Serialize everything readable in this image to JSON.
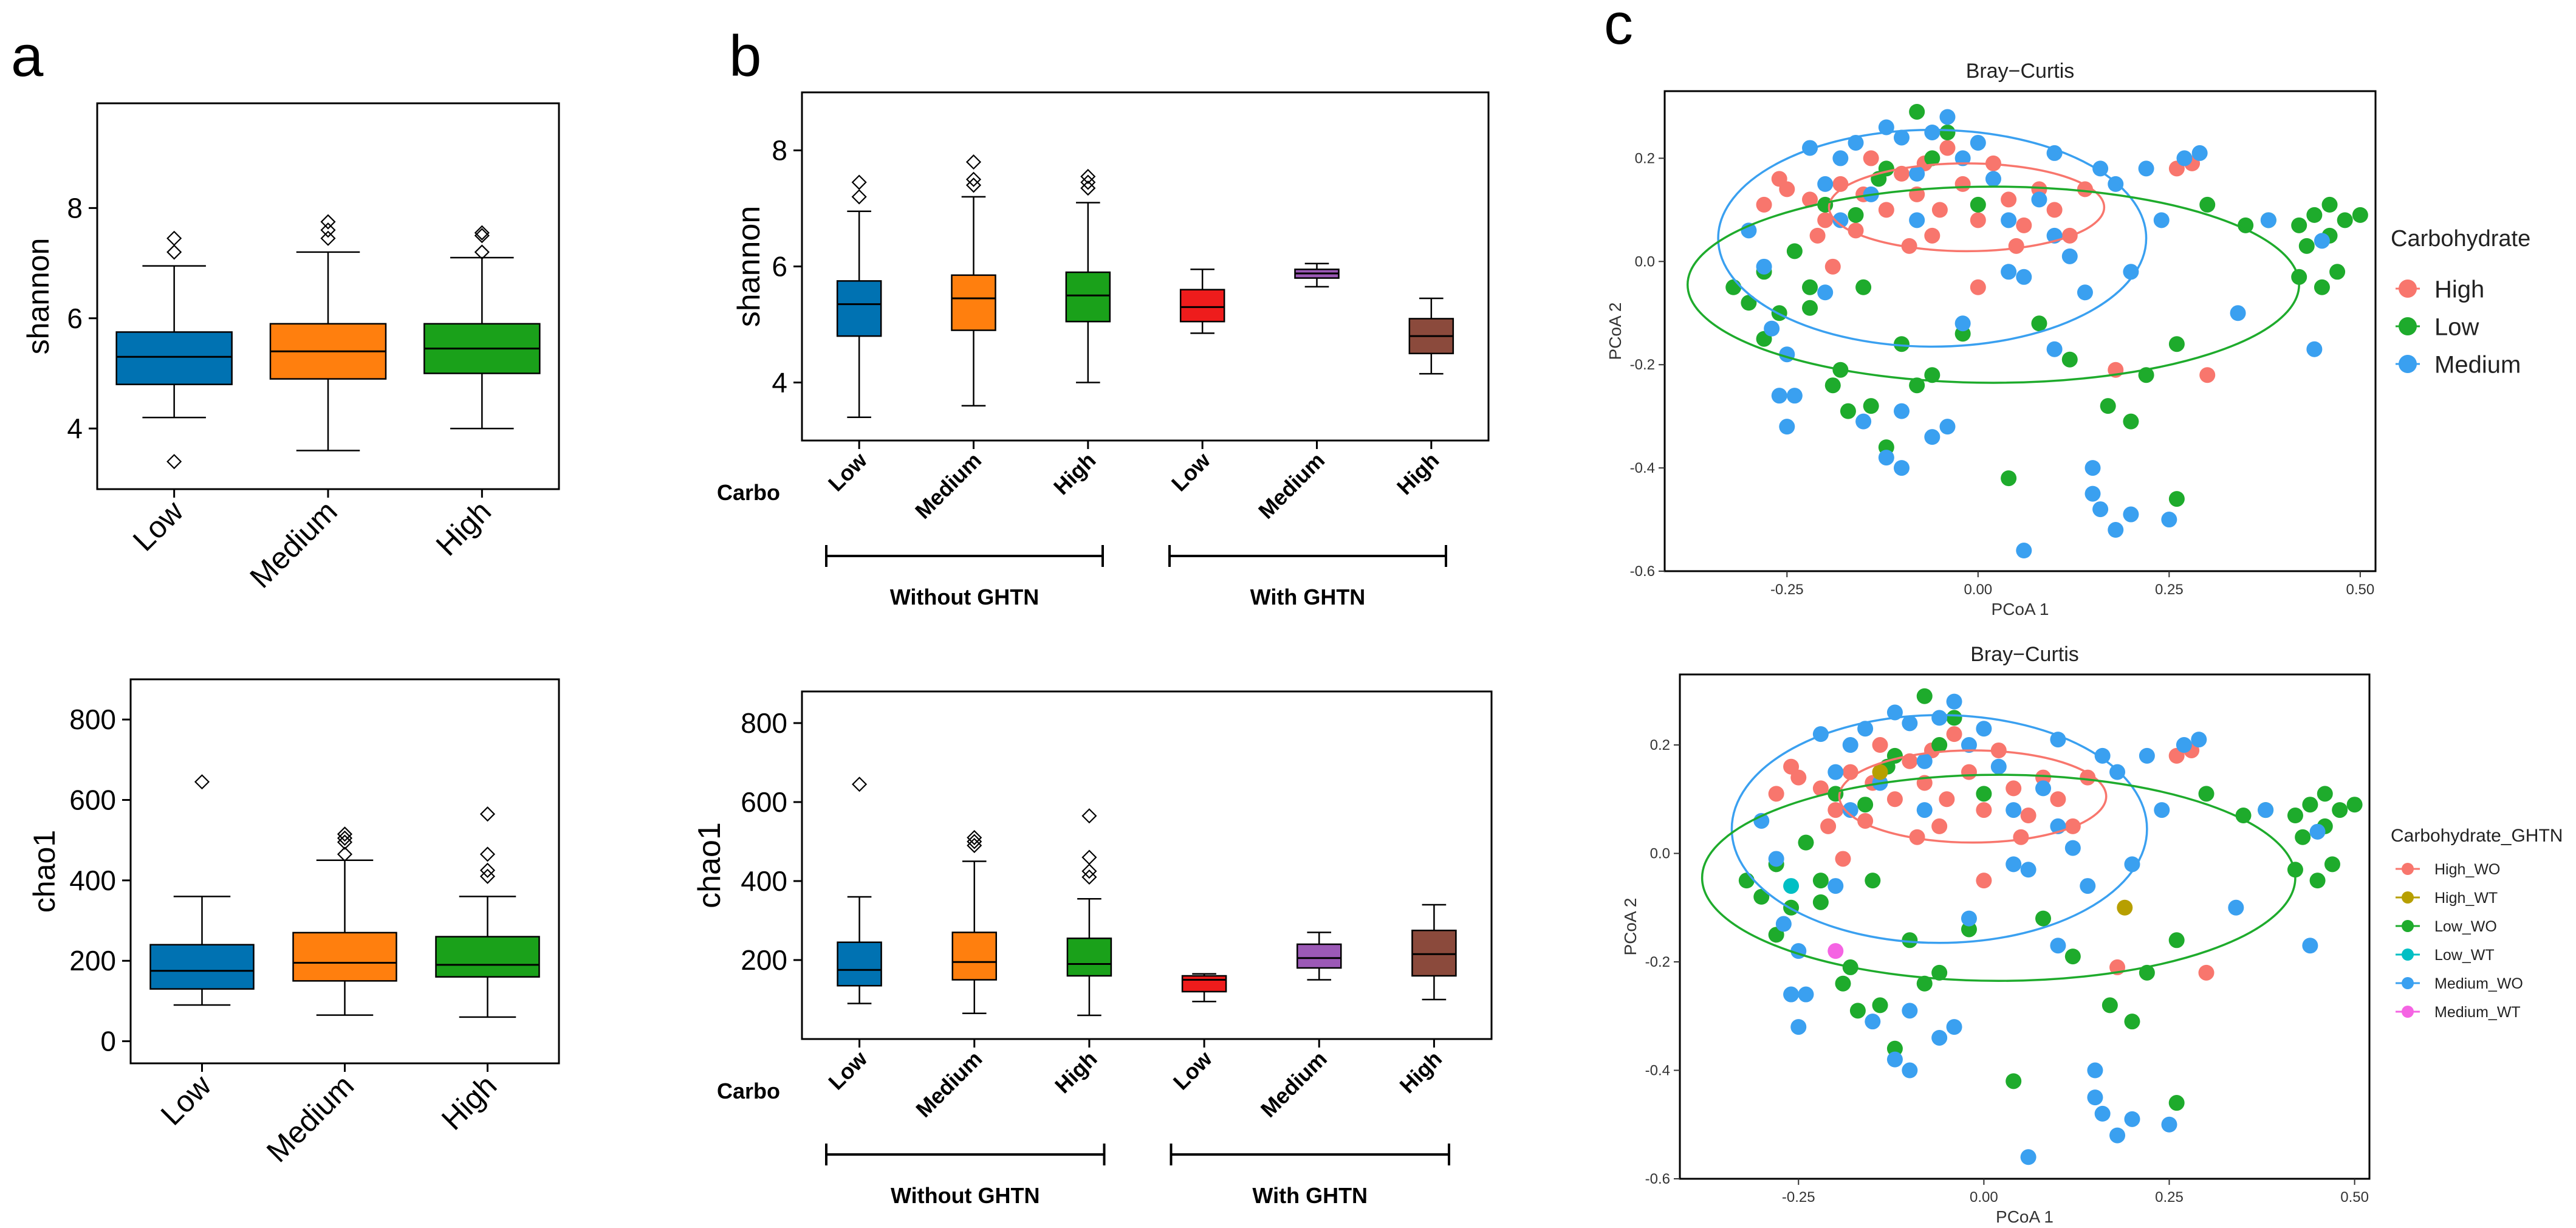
{
  "colors": {
    "low": "#0072b2",
    "medium": "#ff7f0e",
    "high": "#1aa11a",
    "with_low": "#ee1c1c",
    "with_medium": "#9b59b6",
    "with_high": "#8b4a3c",
    "pcoa_high": "#f8766d",
    "pcoa_low": "#1eab2c",
    "pcoa_medium": "#3aa0f0",
    "pcoa_high_wt": "#b79f00",
    "pcoa_low_wt": "#00bfc4",
    "pcoa_medium_wt": "#f564e3"
  },
  "panels": {
    "a": "a",
    "b": "b",
    "c": "c"
  },
  "chart_data": [
    {
      "id": "a_shannon",
      "type": "boxplot",
      "ylabel": "shannon",
      "ylim": [
        2.9,
        9.9
      ],
      "yticks": [
        4,
        6,
        8
      ],
      "categories": [
        "Low",
        "Medium",
        "High"
      ],
      "boxes": [
        {
          "min": 4.2,
          "q1": 4.8,
          "median": 5.3,
          "q3": 5.75,
          "max": 6.95,
          "outliers": [
            7.45,
            7.2,
            3.4
          ]
        },
        {
          "min": 3.6,
          "q1": 4.9,
          "median": 5.4,
          "q3": 5.9,
          "max": 7.2,
          "outliers": [
            7.75,
            7.6,
            7.45
          ]
        },
        {
          "min": 4.0,
          "q1": 5.0,
          "median": 5.45,
          "q3": 5.9,
          "max": 7.1,
          "outliers": [
            7.55,
            7.5,
            7.2
          ]
        }
      ]
    },
    {
      "id": "a_chao1",
      "type": "boxplot",
      "ylabel": "chao1",
      "ylim": [
        -55,
        900
      ],
      "yticks": [
        0,
        200,
        400,
        600,
        800
      ],
      "categories": [
        "Low",
        "Medium",
        "High"
      ],
      "boxes": [
        {
          "min": 90,
          "q1": 130,
          "median": 175,
          "q3": 240,
          "max": 360,
          "outliers": [
            645
          ]
        },
        {
          "min": 65,
          "q1": 150,
          "median": 195,
          "q3": 270,
          "max": 450,
          "outliers": [
            515,
            505,
            495,
            465
          ]
        },
        {
          "min": 60,
          "q1": 160,
          "median": 190,
          "q3": 260,
          "max": 360,
          "outliers": [
            565,
            465,
            425,
            410
          ]
        }
      ]
    },
    {
      "id": "b_shannon",
      "type": "boxplot",
      "ylabel": "shannon",
      "ylim": [
        3.0,
        9.0
      ],
      "yticks": [
        4,
        6,
        8
      ],
      "categories": [
        "Low",
        "Medium",
        "High",
        "Low",
        "Medium",
        "High"
      ],
      "group_axis_label": "Carbo",
      "groups": [
        "Without GHTN",
        "With GHTN"
      ],
      "boxes": [
        {
          "min": 3.4,
          "q1": 4.8,
          "median": 5.35,
          "q3": 5.75,
          "max": 6.95,
          "outliers": [
            7.45,
            7.2
          ]
        },
        {
          "min": 3.6,
          "q1": 4.9,
          "median": 5.45,
          "q3": 5.85,
          "max": 7.2,
          "outliers": [
            7.8,
            7.5,
            7.4
          ]
        },
        {
          "min": 4.0,
          "q1": 5.05,
          "median": 5.5,
          "q3": 5.9,
          "max": 7.1,
          "outliers": [
            7.55,
            7.45,
            7.35
          ]
        },
        {
          "min": 4.85,
          "q1": 5.05,
          "median": 5.3,
          "q3": 5.6,
          "max": 5.95,
          "outliers": []
        },
        {
          "min": 5.65,
          "q1": 5.8,
          "median": 5.88,
          "q3": 5.95,
          "max": 6.05,
          "outliers": []
        },
        {
          "min": 4.15,
          "q1": 4.5,
          "median": 4.8,
          "q3": 5.1,
          "max": 5.45,
          "outliers": []
        }
      ]
    },
    {
      "id": "b_chao1",
      "type": "boxplot",
      "ylabel": "chao1",
      "ylim": [
        0,
        880
      ],
      "yticks": [
        200,
        400,
        600,
        800
      ],
      "categories": [
        "Low",
        "Medium",
        "High",
        "Low",
        "Medium",
        "High"
      ],
      "group_axis_label": "Carbo",
      "groups": [
        "Without GHTN",
        "With GHTN"
      ],
      "boxes": [
        {
          "min": 90,
          "q1": 135,
          "median": 175,
          "q3": 245,
          "max": 360,
          "outliers": [
            645
          ]
        },
        {
          "min": 65,
          "q1": 150,
          "median": 195,
          "q3": 270,
          "max": 450,
          "outliers": [
            510,
            500,
            490
          ]
        },
        {
          "min": 60,
          "q1": 160,
          "median": 190,
          "q3": 255,
          "max": 355,
          "outliers": [
            565,
            460,
            425,
            410
          ]
        },
        {
          "min": 95,
          "q1": 120,
          "median": 150,
          "q3": 160,
          "max": 165,
          "outliers": []
        },
        {
          "min": 150,
          "q1": 180,
          "median": 205,
          "q3": 240,
          "max": 270,
          "outliers": []
        },
        {
          "min": 100,
          "q1": 160,
          "median": 215,
          "q3": 275,
          "max": 340,
          "outliers": []
        }
      ]
    },
    {
      "id": "c_top",
      "type": "scatter",
      "title": "Bray−Curtis",
      "xlabel": "PCoA 1",
      "ylabel": "PCoA 2",
      "xlim": [
        -0.41,
        0.52
      ],
      "ylim": [
        -0.6,
        0.33
      ],
      "xticks": [
        -0.25,
        0.0,
        0.25,
        0.5
      ],
      "xtick_labels": [
        "-0.25",
        "0.00",
        "0.25",
        "0.50"
      ],
      "yticks": [
        0.2,
        0.0,
        -0.2,
        -0.4,
        -0.6
      ],
      "ytick_labels": [
        "0.2",
        "0.0",
        "-0.2",
        "-0.4",
        "-0.6"
      ],
      "legend_title": "Carbohydrate",
      "legend": [
        "High",
        "Low",
        "Medium"
      ],
      "ellipses": [
        {
          "group": "High",
          "cx": -0.015,
          "cy": 0.105,
          "rx": 0.18,
          "ry": 0.085
        },
        {
          "group": "Medium",
          "cx": -0.06,
          "cy": 0.045,
          "rx": 0.28,
          "ry": 0.21
        },
        {
          "group": "Low",
          "cx": 0.02,
          "cy": -0.045,
          "rx": 0.4,
          "ry": 0.19
        }
      ],
      "series": [
        {
          "name": "High",
          "points": [
            [
              -0.28,
              0.11
            ],
            [
              -0.25,
              0.14
            ],
            [
              -0.22,
              0.12
            ],
            [
              -0.2,
              0.08
            ],
            [
              -0.18,
              0.15
            ],
            [
              -0.16,
              0.06
            ],
            [
              -0.14,
              0.2
            ],
            [
              -0.12,
              0.1
            ],
            [
              -0.1,
              0.17
            ],
            [
              -0.08,
              0.13
            ],
            [
              -0.06,
              0.05
            ],
            [
              -0.04,
              0.22
            ],
            [
              -0.02,
              0.15
            ],
            [
              0.0,
              0.08
            ],
            [
              0.02,
              0.19
            ],
            [
              0.04,
              0.12
            ],
            [
              0.06,
              0.07
            ],
            [
              0.08,
              0.14
            ],
            [
              0.1,
              0.1
            ],
            [
              0.12,
              0.05
            ],
            [
              -0.15,
              0.13
            ],
            [
              -0.05,
              0.1
            ],
            [
              0.05,
              0.03
            ],
            [
              0.18,
              -0.21
            ],
            [
              0.3,
              -0.22
            ],
            [
              0.26,
              0.18
            ],
            [
              0.28,
              0.19
            ],
            [
              -0.21,
              0.05
            ],
            [
              -0.09,
              0.03
            ],
            [
              -0.19,
              -0.01
            ],
            [
              0.0,
              -0.05
            ],
            [
              -0.07,
              0.19
            ],
            [
              0.14,
              0.14
            ],
            [
              -0.26,
              0.16
            ]
          ]
        },
        {
          "name": "Low",
          "points": [
            [
              -0.32,
              -0.05
            ],
            [
              -0.3,
              -0.08
            ],
            [
              -0.28,
              -0.02
            ],
            [
              -0.26,
              -0.1
            ],
            [
              -0.24,
              0.02
            ],
            [
              -0.22,
              -0.05
            ],
            [
              -0.19,
              -0.24
            ],
            [
              -0.17,
              -0.29
            ],
            [
              -0.14,
              -0.28
            ],
            [
              -0.12,
              -0.36
            ],
            [
              -0.1,
              -0.16
            ],
            [
              -0.08,
              -0.24
            ],
            [
              -0.06,
              -0.22
            ],
            [
              -0.04,
              0.25
            ],
            [
              -0.02,
              -0.14
            ],
            [
              0.0,
              0.11
            ],
            [
              0.04,
              -0.42
            ],
            [
              0.08,
              -0.12
            ],
            [
              0.12,
              -0.19
            ],
            [
              0.17,
              -0.28
            ],
            [
              0.2,
              -0.31
            ],
            [
              0.22,
              -0.22
            ],
            [
              0.26,
              -0.46
            ],
            [
              0.3,
              0.11
            ],
            [
              0.35,
              0.07
            ],
            [
              0.38,
              0.08
            ],
            [
              0.42,
              0.07
            ],
            [
              0.44,
              0.09
            ],
            [
              0.46,
              0.05
            ],
            [
              0.48,
              0.08
            ],
            [
              0.47,
              -0.02
            ],
            [
              0.45,
              -0.05
            ],
            [
              0.43,
              0.03
            ],
            [
              0.5,
              0.09
            ],
            [
              0.46,
              0.11
            ],
            [
              -0.08,
              0.29
            ],
            [
              -0.06,
              0.2
            ],
            [
              -0.12,
              0.18
            ],
            [
              -0.2,
              0.11
            ],
            [
              -0.16,
              0.09
            ],
            [
              -0.18,
              -0.21
            ],
            [
              -0.15,
              -0.05
            ],
            [
              0.26,
              -0.16
            ],
            [
              -0.28,
              -0.15
            ],
            [
              -0.22,
              -0.09
            ],
            [
              0.42,
              -0.03
            ],
            [
              -0.13,
              0.16
            ]
          ]
        },
        {
          "name": "Medium",
          "points": [
            [
              -0.3,
              0.06
            ],
            [
              -0.28,
              -0.01
            ],
            [
              -0.27,
              -0.13
            ],
            [
              -0.25,
              -0.18
            ],
            [
              -0.24,
              -0.26
            ],
            [
              -0.22,
              0.22
            ],
            [
              -0.2,
              0.15
            ],
            [
              -0.18,
              0.2
            ],
            [
              -0.16,
              0.23
            ],
            [
              -0.14,
              0.13
            ],
            [
              -0.12,
              0.26
            ],
            [
              -0.1,
              0.24
            ],
            [
              -0.08,
              0.17
            ],
            [
              -0.06,
              0.25
            ],
            [
              -0.04,
              0.28
            ],
            [
              -0.02,
              0.2
            ],
            [
              0.0,
              0.23
            ],
            [
              0.02,
              0.16
            ],
            [
              0.04,
              0.08
            ],
            [
              0.06,
              -0.03
            ],
            [
              0.08,
              0.12
            ],
            [
              0.1,
              0.05
            ],
            [
              0.12,
              0.01
            ],
            [
              0.14,
              -0.06
            ],
            [
              0.16,
              0.18
            ],
            [
              0.18,
              0.15
            ],
            [
              0.2,
              -0.02
            ],
            [
              0.22,
              0.18
            ],
            [
              0.24,
              0.08
            ],
            [
              0.27,
              0.2
            ],
            [
              0.29,
              0.21
            ],
            [
              0.34,
              -0.1
            ],
            [
              0.38,
              0.08
            ],
            [
              0.45,
              0.04
            ],
            [
              0.44,
              -0.17
            ],
            [
              0.06,
              -0.56
            ],
            [
              0.15,
              -0.45
            ],
            [
              0.16,
              -0.48
            ],
            [
              0.18,
              -0.52
            ],
            [
              0.2,
              -0.49
            ],
            [
              0.25,
              -0.5
            ],
            [
              -0.1,
              -0.4
            ],
            [
              -0.12,
              -0.38
            ],
            [
              -0.06,
              -0.34
            ],
            [
              -0.26,
              -0.26
            ],
            [
              -0.25,
              -0.32
            ],
            [
              -0.15,
              -0.31
            ],
            [
              -0.04,
              -0.32
            ],
            [
              -0.1,
              -0.29
            ],
            [
              0.15,
              -0.4
            ],
            [
              -0.02,
              -0.12
            ],
            [
              0.04,
              -0.02
            ],
            [
              -0.18,
              0.08
            ],
            [
              -0.2,
              -0.06
            ],
            [
              0.1,
              0.21
            ],
            [
              0.1,
              -0.17
            ],
            [
              -0.08,
              0.08
            ]
          ]
        }
      ]
    },
    {
      "id": "c_bottom",
      "type": "scatter",
      "title": "Bray−Curtis",
      "xlabel": "PCoA 1",
      "ylabel": "PCoA 2",
      "xlim": [
        -0.41,
        0.52
      ],
      "ylim": [
        -0.6,
        0.33
      ],
      "xticks": [
        -0.25,
        0.0,
        0.25,
        0.5
      ],
      "xtick_labels": [
        "-0.25",
        "0.00",
        "0.25",
        "0.50"
      ],
      "yticks": [
        0.2,
        0.0,
        -0.2,
        -0.4,
        -0.6
      ],
      "ytick_labels": [
        "0.2",
        "0.0",
        "-0.2",
        "-0.4",
        "-0.6"
      ],
      "legend_title": "Carbohydrate_GHTN",
      "legend": [
        "High_WO",
        "High_WT",
        "Low_WO",
        "Low_WT",
        "Medium_WO",
        "Medium_WT"
      ],
      "ellipses": [
        {
          "group": "High",
          "cx": -0.015,
          "cy": 0.105,
          "rx": 0.18,
          "ry": 0.085
        },
        {
          "group": "Medium",
          "cx": -0.06,
          "cy": 0.045,
          "rx": 0.28,
          "ry": 0.21
        },
        {
          "group": "Low",
          "cx": 0.02,
          "cy": -0.045,
          "rx": 0.4,
          "ry": 0.19
        }
      ],
      "extra_points": [
        {
          "name": "High_WT",
          "points": [
            [
              -0.14,
              0.15
            ],
            [
              0.19,
              -0.1
            ]
          ]
        },
        {
          "name": "Low_WT",
          "points": [
            [
              -0.26,
              -0.06
            ]
          ]
        },
        {
          "name": "Medium_WT",
          "points": [
            [
              -0.2,
              -0.18
            ]
          ]
        }
      ]
    }
  ]
}
